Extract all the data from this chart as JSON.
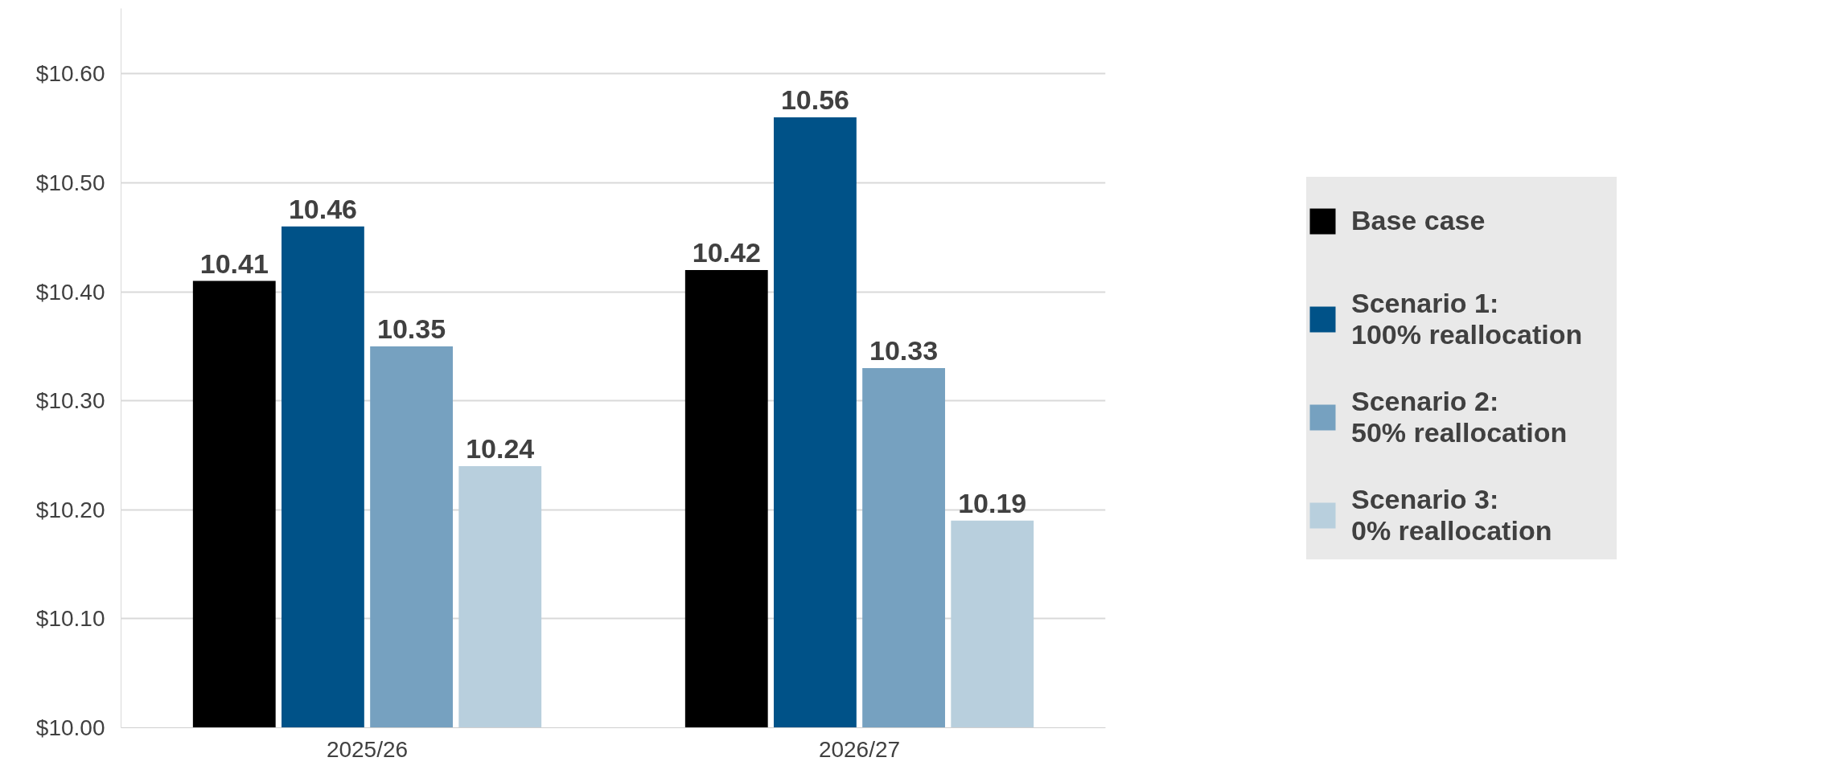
{
  "chart_data": {
    "type": "bar",
    "categories": [
      "2025/26",
      "2026/27"
    ],
    "series": [
      {
        "name": "Base case",
        "color": "#000000",
        "values": [
          10.41,
          10.42
        ]
      },
      {
        "name": "Scenario 1:\n100% reallocation",
        "color": "#005288",
        "values": [
          10.46,
          10.56
        ]
      },
      {
        "name": "Scenario 2:\n50% reallocation",
        "color": "#76a1c0",
        "values": [
          10.35,
          10.33
        ]
      },
      {
        "name": "Scenario 3:\n0% reallocation",
        "color": "#b8cfdd",
        "values": [
          10.24,
          10.19
        ]
      }
    ],
    "ylim": [
      10.0,
      10.66
    ],
    "yticks": [
      {
        "value": 10.0,
        "label": "$10.00"
      },
      {
        "value": 10.1,
        "label": "$10.10"
      },
      {
        "value": 10.2,
        "label": "$10.20"
      },
      {
        "value": 10.3,
        "label": "$10.30"
      },
      {
        "value": 10.4,
        "label": "$10.40"
      },
      {
        "value": 10.5,
        "label": "$10.50"
      },
      {
        "value": 10.6,
        "label": "$10.60"
      }
    ],
    "grid": "y",
    "legend": "right",
    "data_labels": true
  }
}
